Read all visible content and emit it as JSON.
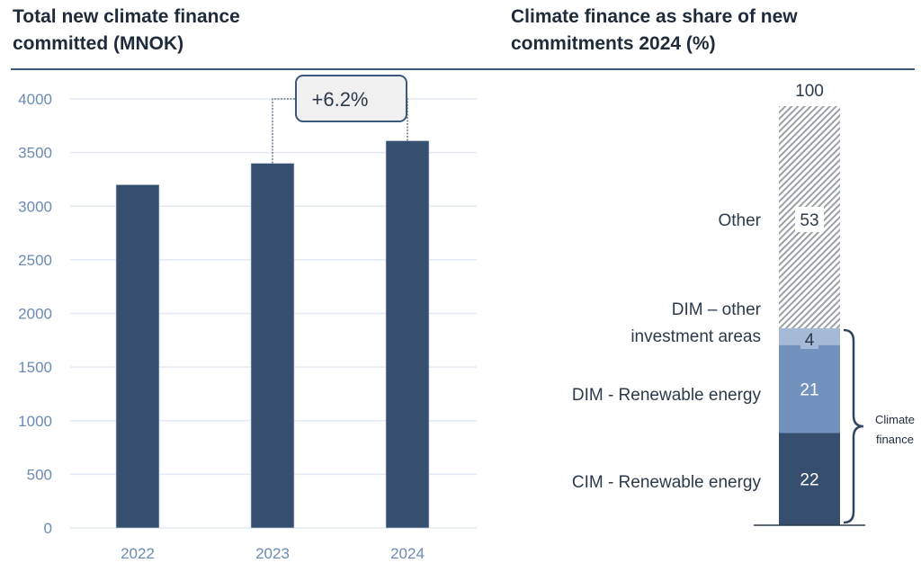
{
  "left_title_line1": "Total new climate finance",
  "left_title_line2": "committed (MNOK)",
  "right_title_line1": "Climate finance as share of new",
  "right_title_line2": "commitments 2024 (%)",
  "colors": {
    "bar": "#374f6e",
    "dim_renewable": "#7292bd",
    "dim_other": "#a5bad6",
    "other_hatch": "#9aa0a8",
    "axis_text": "#6b8bb3",
    "rule": "#3b5878"
  },
  "chart_data": [
    {
      "type": "bar",
      "title": "Total new climate finance committed (MNOK)",
      "categories": [
        "2022",
        "2023",
        "2024"
      ],
      "values": [
        3200,
        3400,
        3610
      ],
      "ylim": [
        0,
        4000
      ],
      "yticks": [
        "0",
        "500",
        "1000",
        "1500",
        "2000",
        "2500",
        "3000",
        "3500",
        "4000"
      ],
      "grid": true,
      "annotation": {
        "label": "+6.2%",
        "from": "2023",
        "to": "2024"
      }
    },
    {
      "type": "bar",
      "stacked": true,
      "title": "Climate finance as share of new commitments 2024 (%)",
      "total_label": "100",
      "segments": [
        {
          "name": "CIM - Renewable energy",
          "value": 22,
          "label": "22"
        },
        {
          "name": "DIM - Renewable energy",
          "value": 21,
          "label": "21"
        },
        {
          "name": "DIM – other investment areas",
          "line1": "DIM – other",
          "line2": "investment areas",
          "value": 4,
          "label": "4"
        },
        {
          "name": "Other",
          "value": 53,
          "label": "53"
        }
      ],
      "brace_label_line1": "Climate",
      "brace_label_line2": "finance"
    }
  ]
}
